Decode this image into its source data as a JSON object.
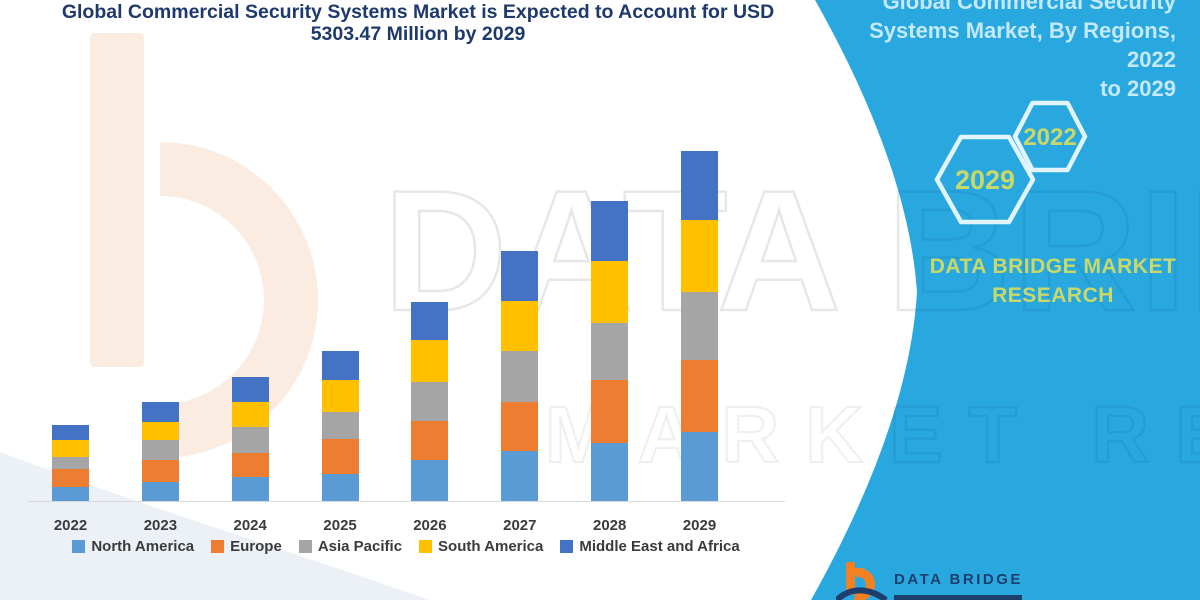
{
  "title": {
    "line1": "Global Commercial Security Systems Market is Expected to Account for USD",
    "line2": "5303.47 Million by 2029"
  },
  "chart_data": {
    "type": "bar",
    "stacked": true,
    "title": "Global Commercial Security Systems Market is Expected to Account for USD 5303.47 Million by 2029",
    "unit": "USD Million",
    "xlabel": "",
    "ylabel": "",
    "y_axis_visible": false,
    "grid": false,
    "legend_position": "bottom",
    "ylim": [
      0,
      5600
    ],
    "categories": [
      "2022",
      "2023",
      "2024",
      "2025",
      "2026",
      "2027",
      "2028",
      "2029"
    ],
    "series": [
      {
        "name": "North America",
        "color": "#5b9bd5",
        "values": [
          212,
          287,
          363,
          413,
          615,
          756,
          882,
          1043
        ]
      },
      {
        "name": "Europe",
        "color": "#ed7d31",
        "values": [
          278,
          328,
          367,
          520,
          594,
          741,
          943,
          1084
        ]
      },
      {
        "name": "Asia Pacific",
        "color": "#a5a5a5",
        "values": [
          175,
          302,
          389,
          413,
          590,
          771,
          871,
          1039
        ]
      },
      {
        "name": "South America",
        "color": "#ffc000",
        "values": [
          253,
          277,
          378,
          479,
          635,
          756,
          933,
          1084
        ]
      },
      {
        "name": "Middle East and Africa",
        "color": "#4472c4",
        "values": [
          227,
          302,
          378,
          443,
          579,
          756,
          907,
          1053.47
        ]
      }
    ],
    "totals": [
      1145,
      1496,
      1875,
      2268,
      3013,
      3780,
      4536,
      5303.47
    ]
  },
  "sidebar": {
    "title_lines": [
      "Global Commercial Security",
      "Systems Market, By Regions, 2022",
      "to 2029"
    ],
    "hexagons": [
      {
        "label": "2029"
      },
      {
        "label": "2022"
      }
    ],
    "brand_line1": "DATA BRIDGE MARKET",
    "brand_line2": "RESEARCH"
  },
  "footer_logo": {
    "text": "DATA BRIDGE"
  },
  "watermarks": {
    "row1": "DATA BRIDGE",
    "row2": "MARKET RESEARCH"
  },
  "colors": {
    "sidebar_teal": "#29a8e0",
    "title_navy": "#1e3a6c",
    "sidebar_text": "#c3e9fa",
    "brand_green": "#c9d867",
    "logo_orange": "#f5801f",
    "logo_navy": "#1c3f6e",
    "axis_label": "#3b3b3b",
    "axis_line": "#d9d9d9"
  }
}
